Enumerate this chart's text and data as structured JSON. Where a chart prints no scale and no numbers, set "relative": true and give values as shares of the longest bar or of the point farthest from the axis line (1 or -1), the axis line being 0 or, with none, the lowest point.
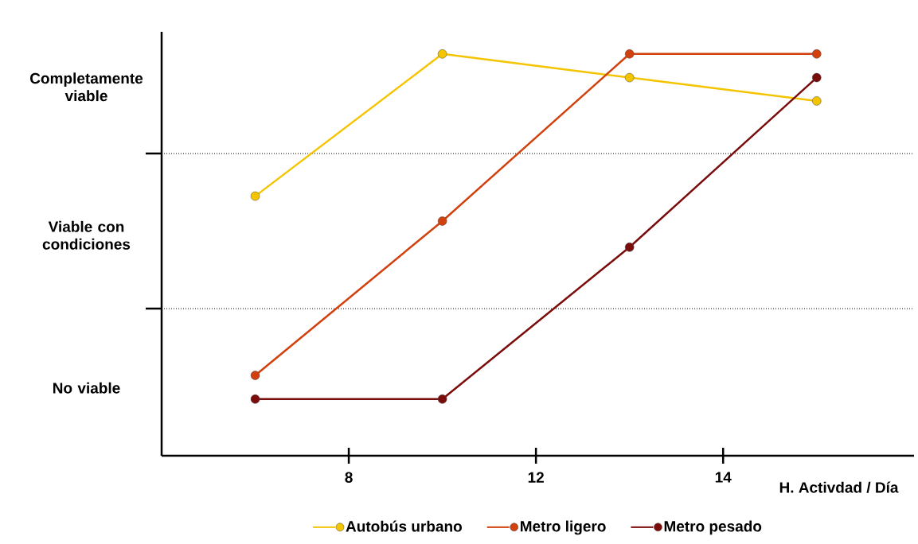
{
  "chart_data": {
    "type": "line",
    "xlabel": "H. Activdad / Día",
    "categories": [
      null,
      null,
      null,
      null
    ],
    "relative": true,
    "annotations": [
      "Completamente viable",
      "Viable con condiciones",
      "No viable",
      "8",
      "12",
      "14"
    ],
    "series": [
      {
        "name": "Autobús urbano",
        "color": "#f5c400",
        "values": [
          0.646,
          1,
          0.941,
          0.883
        ]
      },
      {
        "name": "Metro ligero",
        "color": "#d2400e",
        "values": [
          0.2,
          0.584,
          1,
          1
        ]
      },
      {
        "name": "Metro pesado",
        "color": "#7a0c0c",
        "values": [
          0.141,
          0.141,
          0.519,
          0.941
        ]
      }
    ],
    "ref_lines": [
      {
        "axis": "y",
        "value": 0.366,
        "line_style": "dotted"
      },
      {
        "axis": "y",
        "value": 0.752,
        "line_style": "dotted"
      }
    ],
    "marker": "circle",
    "line_style": "solid",
    "legend": "bottom"
  }
}
